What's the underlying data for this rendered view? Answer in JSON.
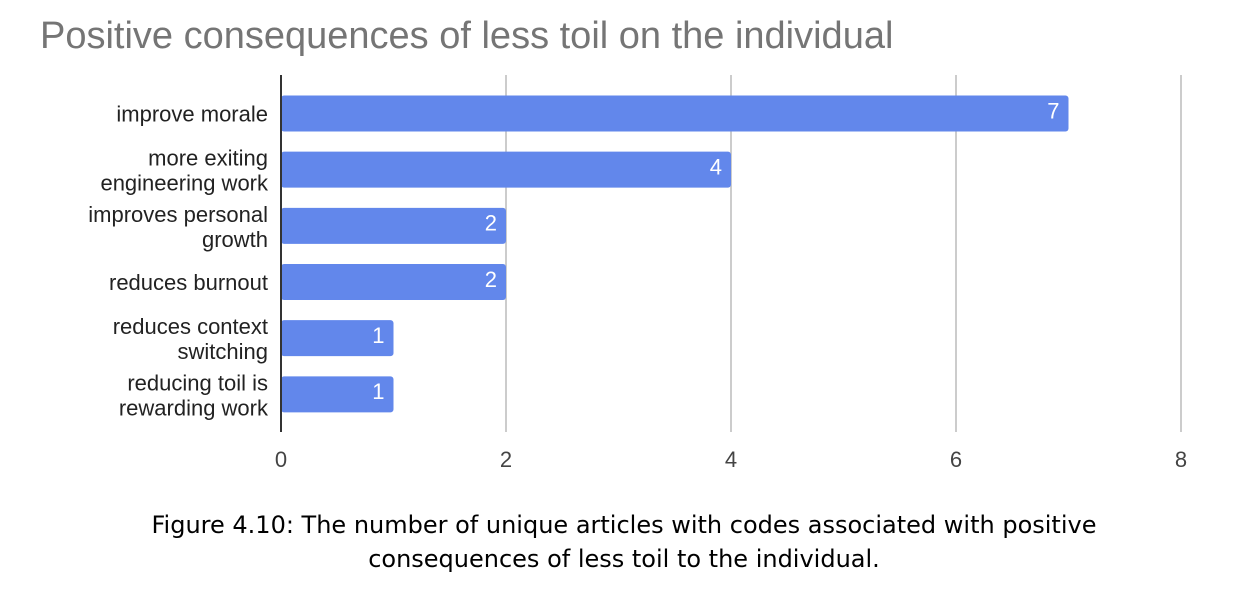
{
  "chart_data": {
    "type": "bar",
    "orientation": "horizontal",
    "title": "Positive consequences of less toil on the individual",
    "categories": [
      [
        "improve morale"
      ],
      [
        "more exiting",
        "engineering work"
      ],
      [
        "improves personal",
        "growth"
      ],
      [
        "reduces burnout"
      ],
      [
        "reduces context",
        "switching"
      ],
      [
        "reducing toil is",
        "rewarding work"
      ]
    ],
    "values": [
      7,
      4,
      2,
      2,
      1,
      1
    ],
    "data_labels": [
      "7",
      "4",
      "2",
      "2",
      "1",
      "1"
    ],
    "xlim": [
      0,
      8
    ],
    "xticks": [
      "0",
      "2",
      "4",
      "6",
      "8"
    ],
    "grid": true,
    "bar_color": "#6287eb"
  },
  "caption": {
    "line1": "Figure 4.10: The number of unique articles with codes associated with positive",
    "line2": "consequences of less toil to the individual."
  }
}
